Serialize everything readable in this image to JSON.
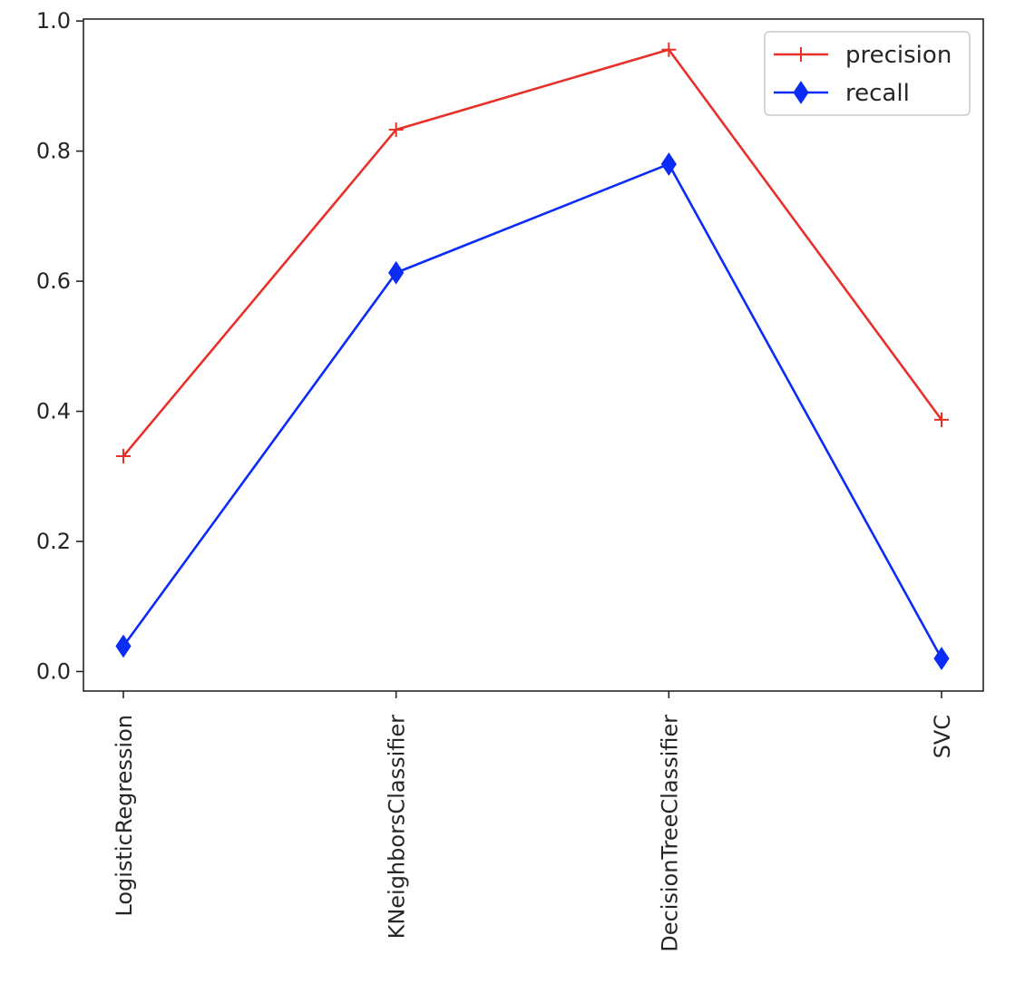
{
  "chart_data": {
    "type": "line",
    "title": "",
    "xlabel": "",
    "ylabel": "",
    "categories": [
      "LogisticRegression",
      "KNeighborsClassifier",
      "DecisionTreeClassifier",
      "SVC"
    ],
    "ylim": [
      -0.03,
      1.003
    ],
    "yticks": [
      0.0,
      0.2,
      0.4,
      0.6,
      0.8,
      1.0
    ],
    "ytick_labels": [
      "0.0",
      "0.2",
      "0.4",
      "0.6",
      "0.8",
      "1.0"
    ],
    "grid": false,
    "legend_position": "top-right",
    "series": [
      {
        "name": "precision",
        "color": "#e8302a",
        "marker": "plus",
        "values": [
          0.331,
          0.833,
          0.956,
          0.387
        ]
      },
      {
        "name": "recall",
        "color": "#0a2cf5",
        "marker": "diamond",
        "values": [
          0.039,
          0.613,
          0.78,
          0.02
        ]
      }
    ]
  }
}
